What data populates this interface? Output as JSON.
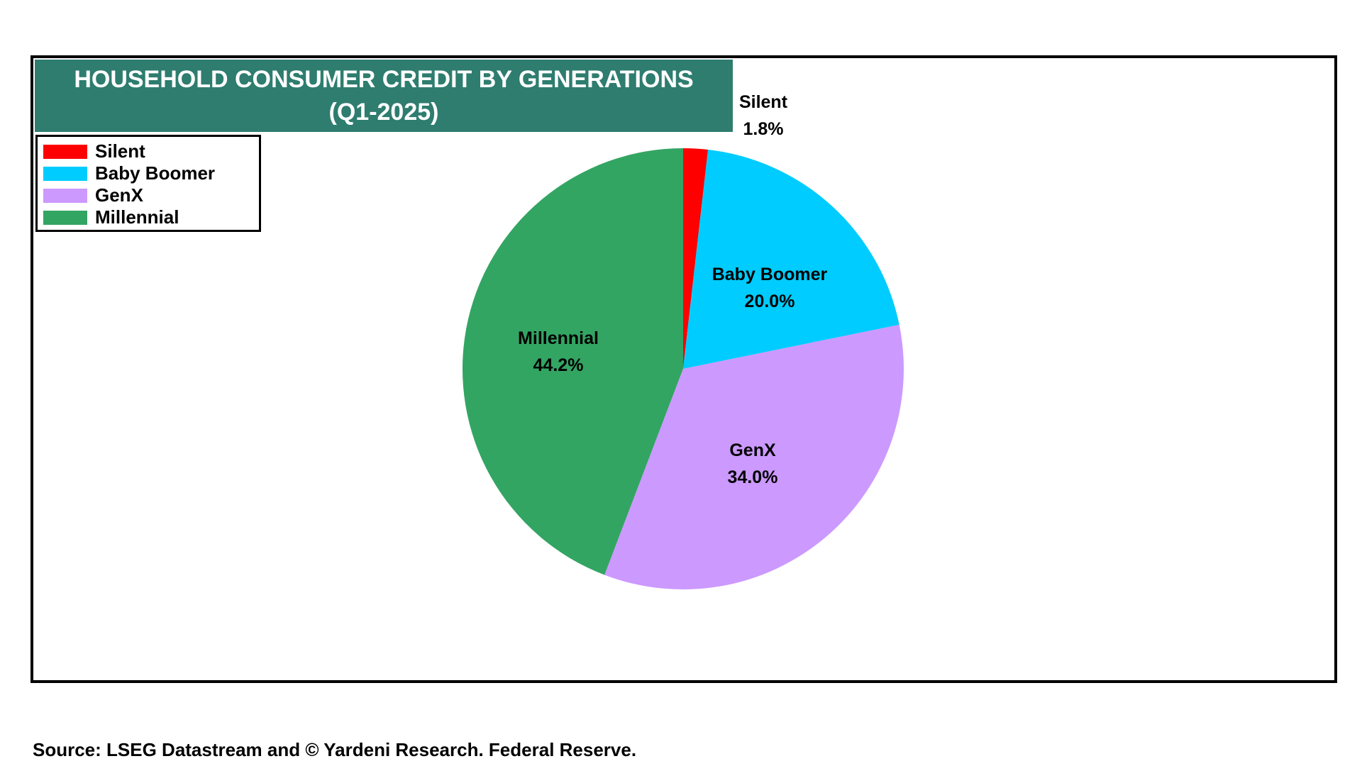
{
  "chart_data": {
    "type": "pie",
    "title": [
      "HOUSEHOLD CONSUMER CREDIT BY GENERATIONS",
      "(Q1-2025)"
    ],
    "categories": [
      "Silent",
      "Baby Boomer",
      "GenX",
      "Millennial"
    ],
    "values": [
      1.8,
      20.0,
      34.0,
      44.2
    ],
    "value_labels": [
      "1.8%",
      "20.0%",
      "34.0%",
      "44.2%"
    ],
    "colors": [
      "#ff0000",
      "#00ccff",
      "#cc99ff",
      "#33a563"
    ],
    "legend_position": "top-left",
    "start_angle": "12 o'clock, clockwise"
  },
  "title_colors": {
    "background": "#2e7d6f",
    "text": "#ffffff"
  },
  "source": "Source: LSEG Datastream and © Yardeni Research. Federal Reserve."
}
